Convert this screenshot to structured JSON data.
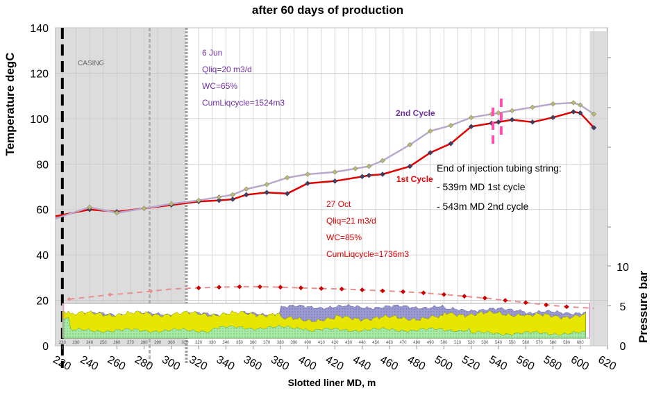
{
  "chart_data": {
    "type": "line",
    "title": "after 60 days of production",
    "xlabel": "Slotted liner MD, m",
    "ylabel": "Temperature degC",
    "y2label": "Pressure bar",
    "xlim": [
      215,
      620
    ],
    "ylim": [
      0,
      140
    ],
    "y2ticks": [
      "0",
      "5",
      "10"
    ],
    "xticks": [
      220,
      240,
      260,
      280,
      300,
      320,
      340,
      360,
      380,
      400,
      420,
      440,
      460,
      480,
      500,
      520,
      540,
      560,
      580,
      600,
      620
    ],
    "yticks": [
      0,
      20,
      40,
      60,
      80,
      100,
      120,
      140
    ],
    "inner_xticks": [
      "220",
      "230",
      "240",
      "250",
      "260",
      "270",
      "280",
      "290",
      "300",
      "310",
      "320",
      "330",
      "340",
      "350",
      "360",
      "370",
      "380",
      "390",
      "400",
      "410",
      "420",
      "430",
      "440",
      "450",
      "460",
      "470",
      "480",
      "490",
      "500",
      "510",
      "520",
      "530",
      "540",
      "550",
      "560",
      "570",
      "580",
      "590",
      "600"
    ],
    "casing_label": "CASING",
    "series": [
      {
        "name": "1st Cycle",
        "color": "#e00000",
        "points": [
          [
            215,
            57
          ],
          [
            240,
            60
          ],
          [
            260,
            59
          ],
          [
            280,
            60.5
          ],
          [
            300,
            62
          ],
          [
            320,
            63.5
          ],
          [
            335,
            64
          ],
          [
            345,
            64.5
          ],
          [
            355,
            66.5
          ],
          [
            370,
            67.5
          ],
          [
            385,
            67
          ],
          [
            400,
            71.5
          ],
          [
            420,
            72.5
          ],
          [
            440,
            74.5
          ],
          [
            445,
            75
          ],
          [
            455,
            75.5
          ],
          [
            475,
            79
          ],
          [
            490,
            85
          ],
          [
            505,
            89
          ],
          [
            520,
            96.5
          ],
          [
            535,
            98
          ],
          [
            540,
            98.5
          ],
          [
            550,
            99.5
          ],
          [
            565,
            98.5
          ],
          [
            580,
            100.5
          ],
          [
            595,
            103
          ],
          [
            600,
            102.5
          ],
          [
            610,
            96
          ]
        ]
      },
      {
        "name": "2nd Cycle",
        "color": "#b8a8cc",
        "points": [
          [
            215,
            56
          ],
          [
            240,
            61
          ],
          [
            260,
            58.5
          ],
          [
            280,
            60.5
          ],
          [
            300,
            62.5
          ],
          [
            320,
            64
          ],
          [
            335,
            65.5
          ],
          [
            345,
            66.5
          ],
          [
            355,
            69
          ],
          [
            370,
            71
          ],
          [
            385,
            74
          ],
          [
            400,
            75.5
          ],
          [
            420,
            76.5
          ],
          [
            435,
            78
          ],
          [
            445,
            79
          ],
          [
            455,
            81.5
          ],
          [
            475,
            88.5
          ],
          [
            490,
            94.5
          ],
          [
            505,
            97
          ],
          [
            520,
            100.5
          ],
          [
            535,
            102
          ],
          [
            540,
            102.5
          ],
          [
            550,
            103.5
          ],
          [
            565,
            105
          ],
          [
            580,
            106.5
          ],
          [
            595,
            107
          ],
          [
            600,
            106
          ],
          [
            610,
            102
          ]
        ]
      }
    ],
    "pressure_series": {
      "color": "#cc0000",
      "points": [
        [
          225,
          20.5
        ],
        [
          240,
          21.5
        ],
        [
          255,
          22.5
        ],
        [
          270,
          23.2
        ],
        [
          285,
          24
        ],
        [
          300,
          25
        ],
        [
          320,
          25.5
        ],
        [
          335,
          25.8
        ],
        [
          350,
          26
        ],
        [
          365,
          26
        ],
        [
          380,
          25.8
        ],
        [
          395,
          25.5
        ],
        [
          410,
          25.2
        ],
        [
          425,
          25
        ],
        [
          440,
          24.6
        ],
        [
          455,
          24.2
        ],
        [
          470,
          23.8
        ],
        [
          485,
          23.3
        ],
        [
          500,
          22.6
        ],
        [
          515,
          21.8
        ],
        [
          530,
          21
        ],
        [
          545,
          20
        ],
        [
          560,
          19
        ],
        [
          575,
          18
        ],
        [
          590,
          17.2
        ],
        [
          610,
          16.5
        ]
      ]
    },
    "annotations": {
      "jun": [
        "6 Jun",
        "Qliq=20 m3/d",
        "WC=65%",
        "CumLiqcycle=1524m3"
      ],
      "oct": [
        "27 Oct",
        "Qliq=21 m3/d",
        "WC=85%",
        "CumLiqcycle=1736m3"
      ],
      "end_tubing": [
        "End of injection tubing string:",
        "- 539m MD 1st cycle",
        "- 543m MD 2nd cycle"
      ],
      "cycle2_label": "2nd Cycle",
      "cycle1_label": "1st Cycle"
    },
    "pink_markers": [
      536,
      542
    ],
    "grid": true
  }
}
